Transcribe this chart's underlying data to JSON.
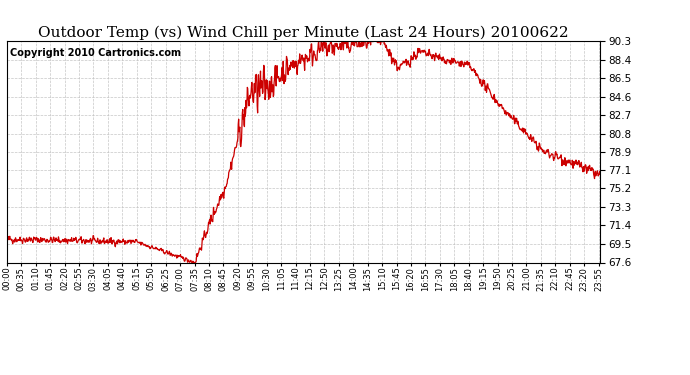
{
  "title": "Outdoor Temp (vs) Wind Chill per Minute (Last 24 Hours) 20100622",
  "copyright": "Copyright 2010 Cartronics.com",
  "y_ticks": [
    67.6,
    69.5,
    71.4,
    73.3,
    75.2,
    77.1,
    78.9,
    80.8,
    82.7,
    84.6,
    86.5,
    88.4,
    90.3
  ],
  "y_min": 67.6,
  "y_max": 90.3,
  "line_color": "#cc0000",
  "background_color": "#ffffff",
  "grid_color": "#c0c0c0",
  "title_fontsize": 11,
  "copyright_fontsize": 7,
  "x_labels": [
    "00:00",
    "00:35",
    "01:10",
    "01:45",
    "02:20",
    "02:55",
    "03:30",
    "04:05",
    "04:40",
    "05:15",
    "05:50",
    "06:25",
    "07:00",
    "07:35",
    "08:10",
    "08:45",
    "09:20",
    "09:55",
    "10:30",
    "11:05",
    "11:40",
    "12:15",
    "12:50",
    "13:25",
    "14:00",
    "14:35",
    "15:10",
    "15:45",
    "16:20",
    "16:55",
    "17:30",
    "18:05",
    "18:40",
    "19:15",
    "19:50",
    "20:25",
    "21:00",
    "21:35",
    "22:10",
    "22:45",
    "23:20",
    "23:55"
  ],
  "phases": [
    {
      "t0": 0,
      "t1": 315,
      "v0": 70.0,
      "v1": 69.7,
      "noise": 0.25,
      "pow": 1.0
    },
    {
      "t0": 315,
      "t1": 455,
      "v0": 69.7,
      "v1": 67.6,
      "noise": 0.15,
      "pow": 1.0
    },
    {
      "t0": 455,
      "t1": 490,
      "v0": 67.6,
      "v1": 71.5,
      "noise": 0.3,
      "pow": 1.0
    },
    {
      "t0": 490,
      "t1": 530,
      "v0": 71.5,
      "v1": 75.5,
      "noise": 0.5,
      "pow": 1.0
    },
    {
      "t0": 530,
      "t1": 560,
      "v0": 75.5,
      "v1": 80.3,
      "noise": 0.4,
      "pow": 1.0
    },
    {
      "t0": 560,
      "t1": 590,
      "v0": 80.3,
      "v1": 85.0,
      "noise": 1.2,
      "pow": 1.0
    },
    {
      "t0": 590,
      "t1": 630,
      "v0": 85.0,
      "v1": 85.5,
      "noise": 1.5,
      "pow": 1.0
    },
    {
      "t0": 630,
      "t1": 680,
      "v0": 85.5,
      "v1": 87.5,
      "noise": 1.0,
      "pow": 1.0
    },
    {
      "t0": 680,
      "t1": 760,
      "v0": 87.5,
      "v1": 89.5,
      "noise": 0.8,
      "pow": 1.0
    },
    {
      "t0": 760,
      "t1": 840,
      "v0": 89.5,
      "v1": 90.0,
      "noise": 0.7,
      "pow": 1.0
    },
    {
      "t0": 840,
      "t1": 910,
      "v0": 90.0,
      "v1": 90.3,
      "noise": 0.5,
      "pow": 1.0
    },
    {
      "t0": 910,
      "t1": 950,
      "v0": 90.3,
      "v1": 87.5,
      "noise": 0.4,
      "pow": 1.0
    },
    {
      "t0": 950,
      "t1": 1000,
      "v0": 87.5,
      "v1": 89.2,
      "noise": 0.4,
      "pow": 1.0
    },
    {
      "t0": 1000,
      "t1": 1060,
      "v0": 89.2,
      "v1": 88.4,
      "noise": 0.3,
      "pow": 1.0
    },
    {
      "t0": 1060,
      "t1": 1120,
      "v0": 88.4,
      "v1": 87.8,
      "noise": 0.3,
      "pow": 1.0
    },
    {
      "t0": 1120,
      "t1": 1200,
      "v0": 87.8,
      "v1": 83.5,
      "noise": 0.3,
      "pow": 1.0
    },
    {
      "t0": 1200,
      "t1": 1300,
      "v0": 83.5,
      "v1": 79.0,
      "noise": 0.3,
      "pow": 1.0
    },
    {
      "t0": 1300,
      "t1": 1390,
      "v0": 79.0,
      "v1": 77.5,
      "noise": 0.35,
      "pow": 1.0
    },
    {
      "t0": 1390,
      "t1": 1440,
      "v0": 77.5,
      "v1": 76.5,
      "noise": 0.4,
      "pow": 1.0
    }
  ]
}
